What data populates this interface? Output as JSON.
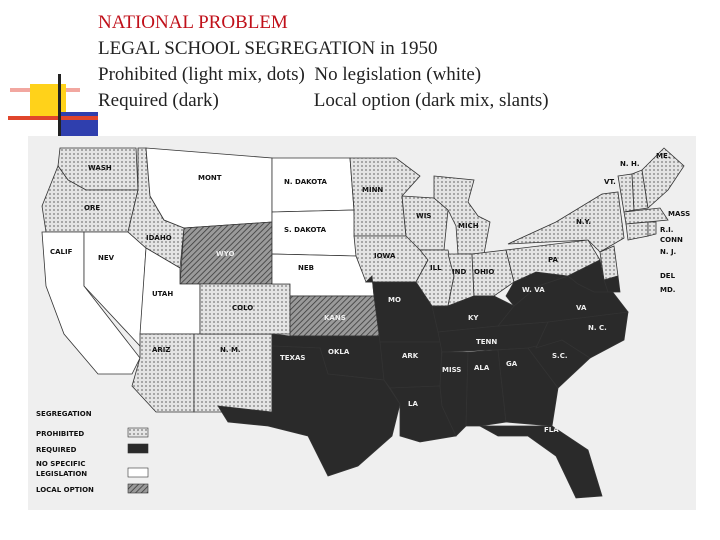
{
  "title": {
    "line1": "NATIONAL PROBLEM",
    "line2": "LEGAL SCHOOL SEGREGATION in 1950",
    "line3": "Prohibited (light mix, dots)  No legislation (white)",
    "line4": "Required (dark)                    Local option (dark mix, slants)"
  },
  "colors": {
    "title_red": "#c0101a",
    "title_dark": "#222222",
    "required": "#2a2a2a",
    "prohibited": "#cfcfcf",
    "none": "#ffffff",
    "local_option": "#7a7a7a"
  },
  "legend": {
    "heading": "SEGREGATION",
    "items": [
      {
        "label": "PROHIBITED",
        "category": "prohibited"
      },
      {
        "label": "REQUIRED",
        "category": "required"
      },
      {
        "label": "NO SPECIFIC",
        "label2": "LEGISLATION",
        "category": "none"
      },
      {
        "label": "LOCAL OPTION",
        "category": "local_option"
      }
    ]
  },
  "states": {
    "wash": "WASH",
    "ore": "ORE",
    "calif": "CALIF",
    "nev": "NEV",
    "idaho": "IDAHO",
    "mont": "MONT",
    "wyo": "WYO",
    "utah": "UTAH",
    "ariz": "ARIZ",
    "nm": "N. M.",
    "colo": "COLO",
    "ndak": "N. DAKOTA",
    "sdak": "S. DAKOTA",
    "neb": "NEB",
    "kans": "KANS",
    "okla": "OKLA",
    "texas": "TEXAS",
    "minn": "MINN",
    "iowa": "IOWA",
    "mo": "MO",
    "ark": "ARK",
    "la": "LA",
    "wis": "WIS",
    "mich": "MICH",
    "ill": "ILL",
    "ind": "IND",
    "ohio": "OHIO",
    "ky": "KY",
    "tenn": "TENN",
    "miss": "MISS",
    "ala": "ALA",
    "ga": "GA",
    "fla": "FLA",
    "sc": "S.C.",
    "nc": "N. C.",
    "va": "VA",
    "wva": "W. VA",
    "pa": "PA",
    "ny": "N.Y.",
    "vt": "VT.",
    "nh": "N. H.",
    "me": "ME.",
    "mass": "MASS",
    "ri": "R.I.",
    "conn": "CONN",
    "nj": "N. J.",
    "del": "DEL",
    "md": "MD."
  }
}
